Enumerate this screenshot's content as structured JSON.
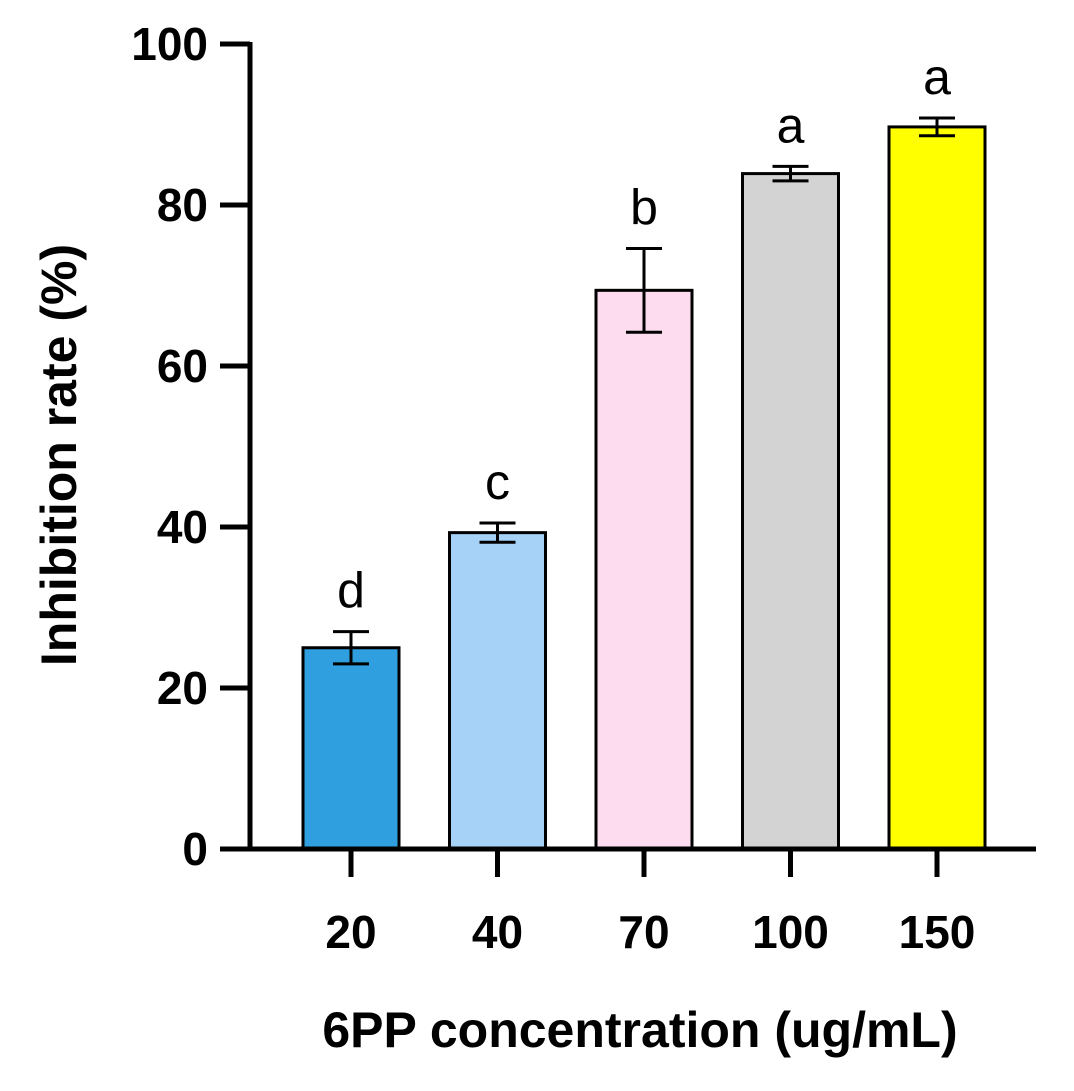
{
  "chart_data": {
    "type": "bar",
    "title": "",
    "xlabel": "6PP concentration (ug/mL)",
    "ylabel": "Inhibition rate (%)",
    "ylim": [
      0,
      100
    ],
    "yticks": [
      0,
      20,
      40,
      60,
      80,
      100
    ],
    "grid": false,
    "categories": [
      "20",
      "40",
      "70",
      "100",
      "150"
    ],
    "values": [
      25,
      39.3,
      69.4,
      83.9,
      89.7
    ],
    "errors": [
      2,
      1.2,
      5.2,
      0.9,
      1.1
    ],
    "significance": [
      "d",
      "c",
      "b",
      "a",
      "a"
    ],
    "colors": [
      "#2f9fe0",
      "#a6d2f8",
      "#fddcf0",
      "#d3d3d3",
      "#ffff00"
    ]
  }
}
